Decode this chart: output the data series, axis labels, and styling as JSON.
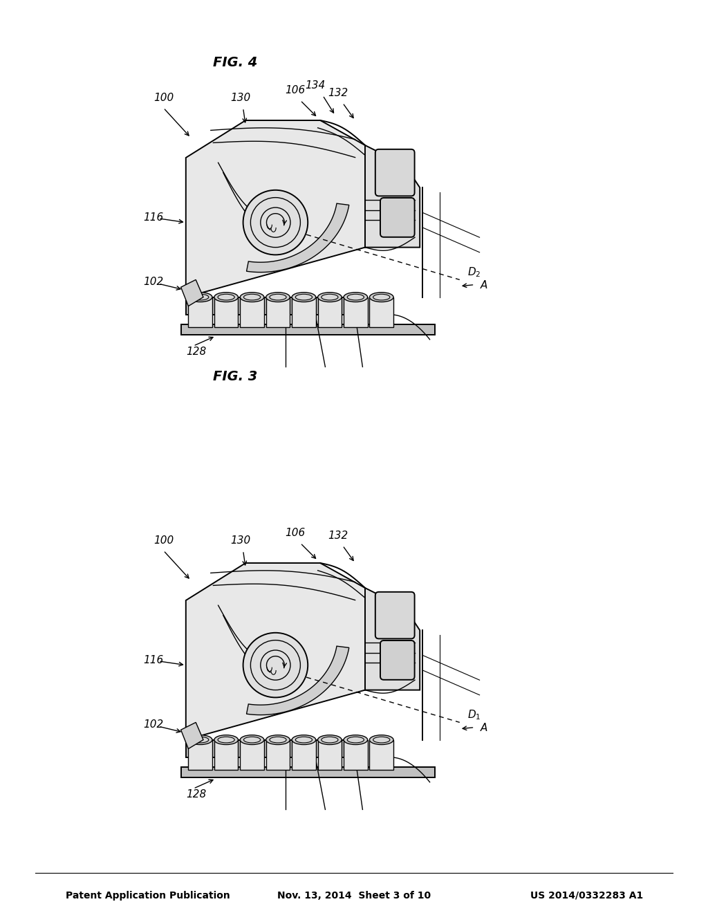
{
  "header_left": "Patent Application Publication",
  "header_mid": "Nov. 13, 2014  Sheet 3 of 10",
  "header_right": "US 2014/0332283 A1",
  "fig3_label": "FIG. 3",
  "fig4_label": "FIG. 4",
  "background_color": "#ffffff",
  "line_color": "#000000",
  "gray_fill": "#d8d8d8",
  "light_fill": "#efefef",
  "dark_fill": "#b0b0b0"
}
